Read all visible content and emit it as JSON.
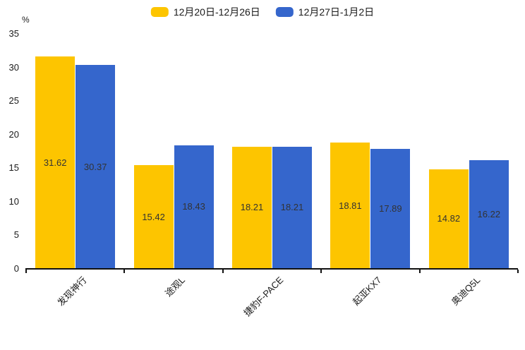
{
  "chart_data": {
    "type": "bar",
    "categories": [
      "发现神行",
      "途观L",
      "捷豹F-PACE",
      "起亚KX7",
      "奥迪Q5L"
    ],
    "series": [
      {
        "name": "12月20日-12月26日",
        "color": "#FDC500",
        "values": [
          31.62,
          15.42,
          18.21,
          18.81,
          14.82
        ]
      },
      {
        "name": "12月27日-1月2日",
        "color": "#3566CC",
        "values": [
          30.37,
          18.43,
          18.21,
          17.89,
          16.22
        ]
      }
    ],
    "title": "",
    "xlabel": "",
    "ylabel": "%",
    "ylim": [
      0,
      35
    ],
    "yticks": [
      0,
      5,
      10,
      15,
      20,
      25,
      30,
      35
    ],
    "grid": false,
    "legend_position": "top-center",
    "bar_label_color": "#333333",
    "axis_color": "#111111"
  }
}
